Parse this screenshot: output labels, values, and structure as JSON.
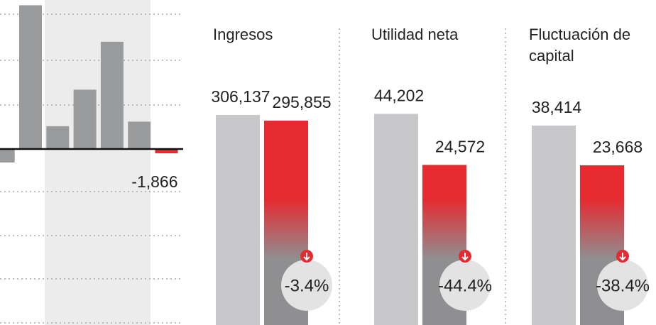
{
  "chart_data": [
    {
      "type": "bar",
      "categories": [
        null,
        null,
        null,
        null,
        null,
        null,
        null
      ],
      "values": [
        -5900,
        63000,
        10000,
        26000,
        47000,
        12000,
        -1866
      ],
      "value_labels": [
        null,
        null,
        null,
        null,
        null,
        null,
        "-1,866"
      ],
      "colors": [
        "#9a9b9d",
        "#9a9b9d",
        "#9a9b9d",
        "#9a9b9d",
        "#9a9b9d",
        "#9a9b9d",
        "#e52a30"
      ],
      "ylim": [
        -77100,
        65300
      ],
      "grid": true
    },
    {
      "type": "pair",
      "title": "Ingresos",
      "values": [
        306137,
        295855
      ],
      "value_labels": [
        "306,137",
        "295,855"
      ],
      "change": -3.4,
      "change_label": "-3.4%",
      "colors": [
        "#c8c8ca",
        "#e52a30"
      ],
      "ylim": [
        -74300,
        514400
      ]
    },
    {
      "type": "pair",
      "title": "Utilidad neta",
      "values": [
        44202,
        24572
      ],
      "value_labels": [
        "44,202",
        "24,572"
      ],
      "change": -44.4,
      "change_label": "-44.4%",
      "colors": [
        "#c8c8ca",
        "#e52a30"
      ],
      "ylim": [
        -37000,
        88000
      ]
    },
    {
      "type": "pair",
      "title": "Fluctuación de capital",
      "values": [
        38414,
        23668
      ],
      "value_labels": [
        "38,414",
        "23,668"
      ],
      "change": -38.4,
      "change_label": "-38.4%",
      "colors": [
        "#c8c8ca",
        "#e52a30"
      ],
      "ylim": [
        -35600,
        85000
      ]
    }
  ]
}
